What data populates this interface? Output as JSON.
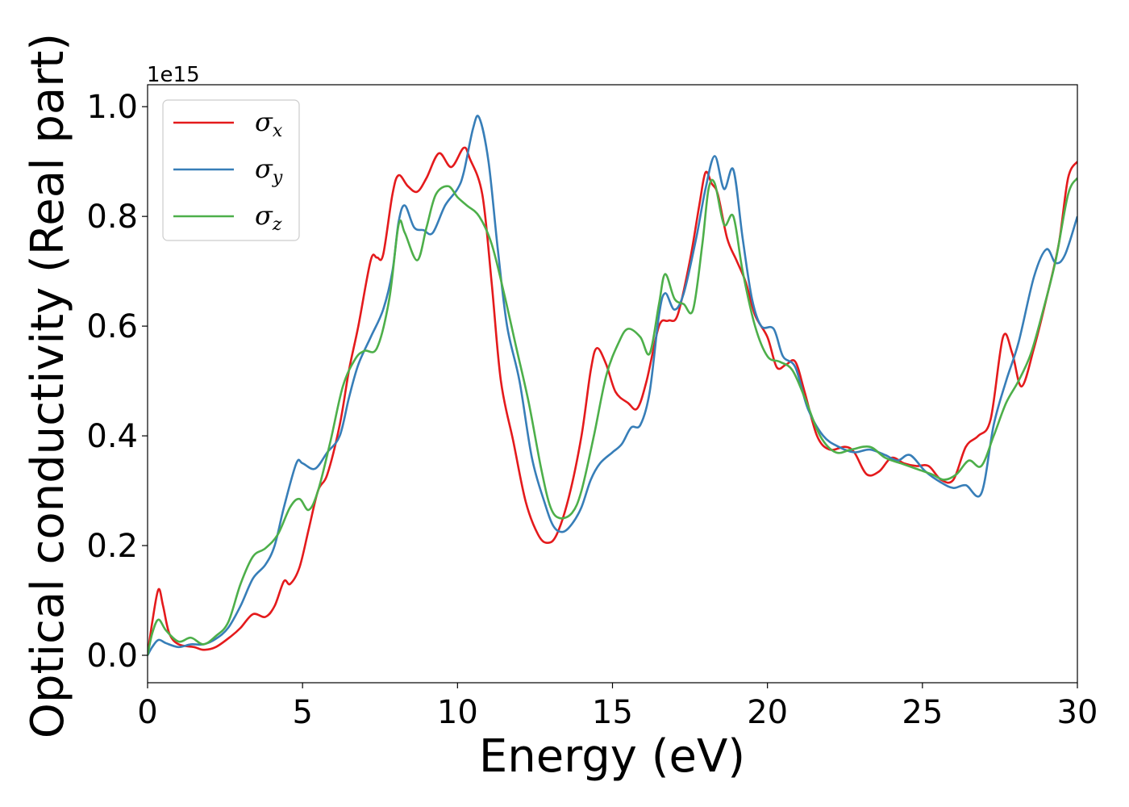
{
  "chart_data": {
    "type": "line",
    "xlabel": "Energy (eV)",
    "ylabel": "Optical conductivity (Real part)",
    "y_offset_label": "1e15",
    "xlim": [
      0,
      30
    ],
    "ylim": [
      -0.05,
      1.04
    ],
    "xticks": [
      0,
      5,
      10,
      15,
      20,
      25,
      30
    ],
    "xtick_labels": [
      "0",
      "5",
      "10",
      "15",
      "20",
      "25",
      "30"
    ],
    "yticks": [
      0.0,
      0.2,
      0.4,
      0.6,
      0.8,
      1.0
    ],
    "ytick_labels": [
      "0.0",
      "0.2",
      "0.4",
      "0.6",
      "0.8",
      "1.0"
    ],
    "grid": false,
    "legend_position": "top-left",
    "series": [
      {
        "name": "σx",
        "symbol": "σ",
        "subscript": "x",
        "color": "#e41a1c",
        "points": [
          [
            0,
            0
          ],
          [
            0.15,
            0.06
          ],
          [
            0.35,
            0.12
          ],
          [
            0.5,
            0.09
          ],
          [
            0.7,
            0.04
          ],
          [
            1.0,
            0.02
          ],
          [
            1.5,
            0.015
          ],
          [
            1.8,
            0.01
          ],
          [
            2.2,
            0.015
          ],
          [
            2.7,
            0.035
          ],
          [
            3.0,
            0.05
          ],
          [
            3.4,
            0.075
          ],
          [
            3.8,
            0.07
          ],
          [
            4.1,
            0.09
          ],
          [
            4.4,
            0.135
          ],
          [
            4.6,
            0.13
          ],
          [
            4.9,
            0.16
          ],
          [
            5.2,
            0.23
          ],
          [
            5.5,
            0.3
          ],
          [
            5.8,
            0.33
          ],
          [
            6.2,
            0.42
          ],
          [
            6.5,
            0.52
          ],
          [
            6.8,
            0.6
          ],
          [
            7.2,
            0.72
          ],
          [
            7.4,
            0.725
          ],
          [
            7.6,
            0.73
          ],
          [
            7.9,
            0.84
          ],
          [
            8.1,
            0.875
          ],
          [
            8.4,
            0.855
          ],
          [
            8.7,
            0.845
          ],
          [
            9.0,
            0.87
          ],
          [
            9.4,
            0.915
          ],
          [
            9.8,
            0.89
          ],
          [
            10.2,
            0.925
          ],
          [
            10.4,
            0.905
          ],
          [
            10.8,
            0.84
          ],
          [
            11.1,
            0.68
          ],
          [
            11.4,
            0.5
          ],
          [
            11.8,
            0.39
          ],
          [
            12.2,
            0.28
          ],
          [
            12.6,
            0.22
          ],
          [
            12.9,
            0.205
          ],
          [
            13.2,
            0.22
          ],
          [
            13.6,
            0.29
          ],
          [
            14.0,
            0.4
          ],
          [
            14.3,
            0.52
          ],
          [
            14.5,
            0.56
          ],
          [
            14.8,
            0.53
          ],
          [
            15.1,
            0.48
          ],
          [
            15.5,
            0.46
          ],
          [
            15.8,
            0.45
          ],
          [
            16.1,
            0.5
          ],
          [
            16.5,
            0.6
          ],
          [
            16.8,
            0.61
          ],
          [
            17.1,
            0.62
          ],
          [
            17.5,
            0.72
          ],
          [
            17.8,
            0.82
          ],
          [
            18.0,
            0.88
          ],
          [
            18.2,
            0.86
          ],
          [
            18.4,
            0.84
          ],
          [
            18.7,
            0.76
          ],
          [
            19.0,
            0.72
          ],
          [
            19.3,
            0.68
          ],
          [
            19.6,
            0.62
          ],
          [
            20.0,
            0.58
          ],
          [
            20.3,
            0.525
          ],
          [
            20.6,
            0.53
          ],
          [
            20.9,
            0.535
          ],
          [
            21.2,
            0.48
          ],
          [
            21.6,
            0.4
          ],
          [
            22.0,
            0.375
          ],
          [
            22.5,
            0.38
          ],
          [
            22.8,
            0.37
          ],
          [
            23.2,
            0.33
          ],
          [
            23.6,
            0.335
          ],
          [
            24.0,
            0.36
          ],
          [
            24.4,
            0.35
          ],
          [
            24.8,
            0.345
          ],
          [
            25.2,
            0.345
          ],
          [
            25.6,
            0.32
          ],
          [
            26.0,
            0.32
          ],
          [
            26.4,
            0.38
          ],
          [
            26.8,
            0.4
          ],
          [
            27.2,
            0.43
          ],
          [
            27.6,
            0.58
          ],
          [
            27.9,
            0.55
          ],
          [
            28.2,
            0.49
          ],
          [
            28.6,
            0.56
          ],
          [
            29.0,
            0.65
          ],
          [
            29.4,
            0.75
          ],
          [
            29.7,
            0.87
          ],
          [
            30.0,
            0.9
          ]
        ]
      },
      {
        "name": "σy",
        "symbol": "σ",
        "subscript": "y",
        "color": "#377eb8",
        "points": [
          [
            0,
            0
          ],
          [
            0.15,
            0.015
          ],
          [
            0.35,
            0.028
          ],
          [
            0.6,
            0.022
          ],
          [
            1.0,
            0.015
          ],
          [
            1.4,
            0.02
          ],
          [
            1.8,
            0.02
          ],
          [
            2.2,
            0.03
          ],
          [
            2.6,
            0.05
          ],
          [
            3.0,
            0.09
          ],
          [
            3.4,
            0.14
          ],
          [
            3.8,
            0.165
          ],
          [
            4.1,
            0.2
          ],
          [
            4.4,
            0.27
          ],
          [
            4.8,
            0.35
          ],
          [
            5.0,
            0.35
          ],
          [
            5.4,
            0.34
          ],
          [
            5.8,
            0.37
          ],
          [
            6.2,
            0.4
          ],
          [
            6.5,
            0.47
          ],
          [
            6.8,
            0.53
          ],
          [
            7.2,
            0.58
          ],
          [
            7.6,
            0.63
          ],
          [
            7.9,
            0.7
          ],
          [
            8.1,
            0.79
          ],
          [
            8.3,
            0.82
          ],
          [
            8.6,
            0.78
          ],
          [
            8.9,
            0.775
          ],
          [
            9.2,
            0.77
          ],
          [
            9.6,
            0.82
          ],
          [
            10.0,
            0.85
          ],
          [
            10.2,
            0.88
          ],
          [
            10.5,
            0.96
          ],
          [
            10.7,
            0.98
          ],
          [
            11.0,
            0.9
          ],
          [
            11.3,
            0.74
          ],
          [
            11.6,
            0.6
          ],
          [
            12.0,
            0.5
          ],
          [
            12.4,
            0.36
          ],
          [
            12.8,
            0.28
          ],
          [
            13.1,
            0.235
          ],
          [
            13.4,
            0.225
          ],
          [
            13.7,
            0.24
          ],
          [
            14.0,
            0.27
          ],
          [
            14.3,
            0.32
          ],
          [
            14.6,
            0.35
          ],
          [
            15.0,
            0.37
          ],
          [
            15.3,
            0.385
          ],
          [
            15.6,
            0.415
          ],
          [
            15.9,
            0.42
          ],
          [
            16.2,
            0.48
          ],
          [
            16.5,
            0.62
          ],
          [
            16.7,
            0.66
          ],
          [
            17.0,
            0.63
          ],
          [
            17.3,
            0.66
          ],
          [
            17.7,
            0.76
          ],
          [
            18.0,
            0.85
          ],
          [
            18.3,
            0.91
          ],
          [
            18.6,
            0.85
          ],
          [
            18.9,
            0.885
          ],
          [
            19.2,
            0.76
          ],
          [
            19.5,
            0.65
          ],
          [
            19.8,
            0.6
          ],
          [
            20.2,
            0.595
          ],
          [
            20.5,
            0.545
          ],
          [
            20.9,
            0.525
          ],
          [
            21.3,
            0.45
          ],
          [
            21.8,
            0.4
          ],
          [
            22.3,
            0.38
          ],
          [
            22.8,
            0.37
          ],
          [
            23.3,
            0.375
          ],
          [
            23.8,
            0.365
          ],
          [
            24.2,
            0.355
          ],
          [
            24.6,
            0.365
          ],
          [
            25.1,
            0.335
          ],
          [
            25.6,
            0.315
          ],
          [
            26.0,
            0.305
          ],
          [
            26.4,
            0.31
          ],
          [
            26.9,
            0.295
          ],
          [
            27.3,
            0.42
          ],
          [
            27.7,
            0.5
          ],
          [
            28.1,
            0.57
          ],
          [
            28.6,
            0.69
          ],
          [
            29.0,
            0.74
          ],
          [
            29.3,
            0.715
          ],
          [
            29.6,
            0.73
          ],
          [
            30.0,
            0.8
          ]
        ]
      },
      {
        "name": "σz",
        "symbol": "σ",
        "subscript": "z",
        "color": "#4daf4a",
        "points": [
          [
            0,
            0
          ],
          [
            0.15,
            0.04
          ],
          [
            0.35,
            0.065
          ],
          [
            0.6,
            0.045
          ],
          [
            1.0,
            0.025
          ],
          [
            1.4,
            0.032
          ],
          [
            1.8,
            0.02
          ],
          [
            2.2,
            0.035
          ],
          [
            2.6,
            0.06
          ],
          [
            3.0,
            0.13
          ],
          [
            3.4,
            0.18
          ],
          [
            3.8,
            0.195
          ],
          [
            4.2,
            0.22
          ],
          [
            4.6,
            0.27
          ],
          [
            4.9,
            0.285
          ],
          [
            5.2,
            0.265
          ],
          [
            5.5,
            0.3
          ],
          [
            5.9,
            0.39
          ],
          [
            6.3,
            0.49
          ],
          [
            6.7,
            0.54
          ],
          [
            7.0,
            0.555
          ],
          [
            7.4,
            0.56
          ],
          [
            7.8,
            0.65
          ],
          [
            8.1,
            0.785
          ],
          [
            8.3,
            0.77
          ],
          [
            8.7,
            0.72
          ],
          [
            9.0,
            0.78
          ],
          [
            9.3,
            0.84
          ],
          [
            9.7,
            0.855
          ],
          [
            10.0,
            0.835
          ],
          [
            10.3,
            0.82
          ],
          [
            10.7,
            0.8
          ],
          [
            11.1,
            0.75
          ],
          [
            11.5,
            0.66
          ],
          [
            11.9,
            0.56
          ],
          [
            12.3,
            0.46
          ],
          [
            12.7,
            0.34
          ],
          [
            13.0,
            0.27
          ],
          [
            13.3,
            0.25
          ],
          [
            13.7,
            0.26
          ],
          [
            14.0,
            0.3
          ],
          [
            14.4,
            0.4
          ],
          [
            14.8,
            0.51
          ],
          [
            15.2,
            0.57
          ],
          [
            15.5,
            0.595
          ],
          [
            15.9,
            0.58
          ],
          [
            16.2,
            0.55
          ],
          [
            16.5,
            0.64
          ],
          [
            16.7,
            0.695
          ],
          [
            17.0,
            0.65
          ],
          [
            17.3,
            0.64
          ],
          [
            17.6,
            0.63
          ],
          [
            17.9,
            0.75
          ],
          [
            18.1,
            0.85
          ],
          [
            18.3,
            0.86
          ],
          [
            18.6,
            0.785
          ],
          [
            18.9,
            0.8
          ],
          [
            19.2,
            0.7
          ],
          [
            19.6,
            0.6
          ],
          [
            20.0,
            0.545
          ],
          [
            20.4,
            0.535
          ],
          [
            20.8,
            0.52
          ],
          [
            21.2,
            0.47
          ],
          [
            21.7,
            0.4
          ],
          [
            22.2,
            0.37
          ],
          [
            22.7,
            0.375
          ],
          [
            23.3,
            0.38
          ],
          [
            23.8,
            0.36
          ],
          [
            24.3,
            0.35
          ],
          [
            24.8,
            0.34
          ],
          [
            25.3,
            0.33
          ],
          [
            25.7,
            0.32
          ],
          [
            26.1,
            0.33
          ],
          [
            26.5,
            0.355
          ],
          [
            26.9,
            0.345
          ],
          [
            27.3,
            0.4
          ],
          [
            27.7,
            0.46
          ],
          [
            28.1,
            0.5
          ],
          [
            28.5,
            0.55
          ],
          [
            28.9,
            0.63
          ],
          [
            29.3,
            0.72
          ],
          [
            29.7,
            0.84
          ],
          [
            30.0,
            0.87
          ]
        ]
      }
    ]
  }
}
